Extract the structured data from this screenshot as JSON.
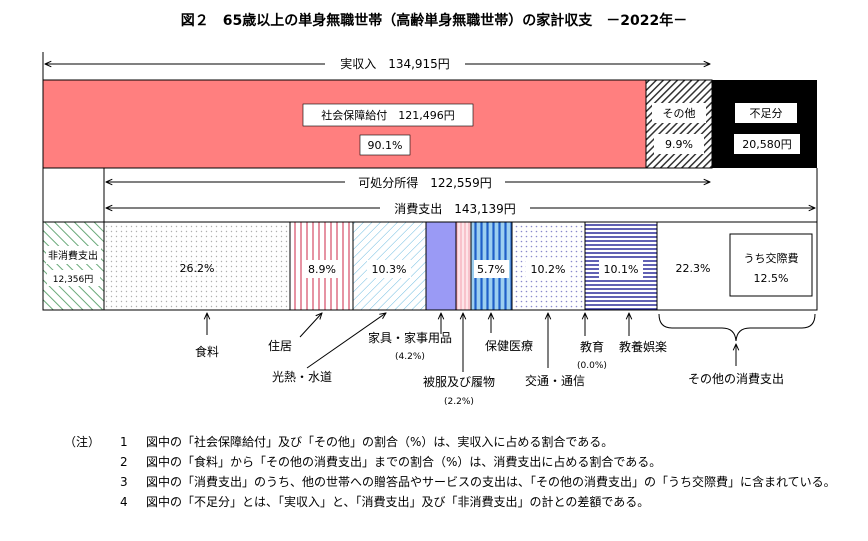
{
  "chart_data": {
    "type": "bar",
    "title": "図２　65歳以上の単身無職世帯（高齢単身無職世帯）の家計収支　－2022年－",
    "income_brackets": {
      "actual_income": "実収入　134,915円",
      "disposable_income": "可処分所得　122,559円",
      "consumption": "消費支出　143,139円"
    },
    "income_row": [
      {
        "label": "社会保障給付　121,496円",
        "amount": 121496,
        "share_text": "90.1%",
        "share": 90.1,
        "color": "#ff7f7f"
      },
      {
        "label": "その他",
        "share_text": "9.9%",
        "share": 9.9,
        "color": "#555555"
      },
      {
        "label": "不足分",
        "amount_text": "20,580円",
        "amount": 20580,
        "color": "#000000"
      }
    ],
    "expense_row": [
      {
        "category": "非消費支出",
        "amount_text": "12,356円",
        "amount": 12356,
        "color": "#4f9a60"
      },
      {
        "category": "食料",
        "share_text": "26.2%",
        "share": 26.2,
        "color": "#b8b8b8"
      },
      {
        "category": "住居",
        "share_text": "8.9%",
        "share": 8.9,
        "color": "#e07a90"
      },
      {
        "category": "光熱・水道",
        "share_text": "10.3%",
        "share": 10.3,
        "color": "#4aa8d0"
      },
      {
        "category": "家具・家事用品",
        "share_label": "(4.2%)",
        "share": 4.2,
        "color": "#9a9af5"
      },
      {
        "category": "被服及び履物",
        "share_label": "(2.2%)",
        "share": 2.2,
        "color": "#f08090"
      },
      {
        "category": "保健医療",
        "share_text": "5.7%",
        "share": 5.7,
        "color": "#1f5fc8"
      },
      {
        "category": "交通・通信",
        "share_text": "10.2%",
        "share": 10.2,
        "color": "#8a8acc"
      },
      {
        "category": "教育",
        "share_label": "(0.0%)",
        "share": 0.0,
        "color": "#8a8acc"
      },
      {
        "category": "教養娯楽",
        "share_text": "10.1%",
        "share": 10.1,
        "color": "#2c2c9a"
      },
      {
        "category": "その他の消費支出",
        "share_text": "22.3%",
        "share": 22.3,
        "color": "#ffffff",
        "sub_label": "うち交際費",
        "sub_share_text": "12.5%",
        "sub_share": 12.5
      }
    ]
  },
  "notes": {
    "head": "（注）",
    "items": [
      {
        "num": "1",
        "text": "図中の「社会保障給付」及び「その他」の割合（%）は、実収入に占める割合である。"
      },
      {
        "num": "2",
        "text": "図中の「食料」から「その他の消費支出」までの割合（%）は、消費支出に占める割合である。"
      },
      {
        "num": "3",
        "text": "図中の「消費支出」のうち、他の世帯への贈答品やサービスの支出は、「その他の消費支出」の「うち交際費」に含まれている。"
      },
      {
        "num": "4",
        "text": "図中の「不足分」とは、「実収入」と、「消費支出」及び「非消費支出」の計との差額である。"
      }
    ]
  }
}
